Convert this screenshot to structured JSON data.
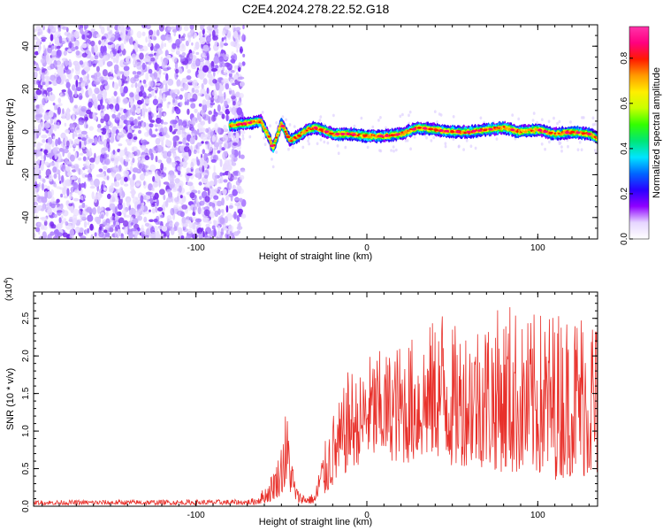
{
  "title": "C2E4.2024.278.22.52.G18",
  "colors": {
    "snr_line": "#e8302a",
    "scatter": "#8a2be2",
    "frame": "#000000"
  },
  "chart_data": [
    {
      "type": "heatmap",
      "xlabel": "Height of straight line (km)",
      "ylabel": "Frequency (Hz)",
      "xlim": [
        -195,
        135
      ],
      "ylim": [
        -50,
        50
      ],
      "x_ticks": [
        -100,
        0,
        100
      ],
      "x_tick_labels": [
        "-100",
        "0",
        "100"
      ],
      "y_ticks": [
        -40,
        -20,
        0,
        20,
        40
      ],
      "y_tick_labels": [
        "-40",
        "-20",
        "0",
        "20",
        "40"
      ],
      "noise_region_x": [
        -195,
        -80
      ],
      "ridge": {
        "x": [
          -80,
          -70,
          -62,
          -57,
          -55,
          -50,
          -45,
          -40,
          -35,
          -30,
          -20,
          -10,
          0,
          10,
          20,
          30,
          40,
          50,
          60,
          70,
          80,
          90,
          100,
          110,
          120,
          130,
          135
        ],
        "frequency": [
          3,
          4,
          5,
          -3,
          -8,
          4,
          -4,
          -2,
          1,
          2,
          -1,
          -1,
          -2,
          -2,
          -1,
          2,
          1,
          0,
          0,
          1,
          2,
          0,
          1,
          -1,
          0,
          -1,
          -3
        ]
      },
      "colorbar": {
        "label": "Normalized spectral amplitude",
        "range": [
          0,
          0.94
        ],
        "ticks": [
          0.0,
          0.2,
          0.4,
          0.6,
          0.8
        ],
        "tick_labels": [
          "0.0",
          "0.2",
          "0.4",
          "0.6",
          "0.8"
        ],
        "colors": [
          "#ffffff",
          "#e6d6ff",
          "#8f00ff",
          "#2a00ff",
          "#0066ff",
          "#00e5ff",
          "#00e676",
          "#33ff00",
          "#c8ff00",
          "#ffee00",
          "#ff9a00",
          "#ff1a00",
          "#ff007f",
          "#ff33aa"
        ]
      }
    },
    {
      "type": "line",
      "xlabel": "Height of straight line (km)",
      "ylabel": "SNR (10 * v/v)",
      "y_multiplier_label": "(x10",
      "y_multiplier_exp": "4",
      "xlim": [
        -195,
        135
      ],
      "ylim": [
        0,
        28500
      ],
      "x_ticks": [
        -100,
        0,
        100
      ],
      "x_tick_labels": [
        "-100",
        "0",
        "100"
      ],
      "y_ticks": [
        0,
        5000,
        10000,
        15000,
        20000,
        25000
      ],
      "y_tick_labels": [
        "0.0",
        "0.5",
        "1.0",
        "1.5",
        "2.0",
        "2.5"
      ],
      "envelope": {
        "x": [
          -195,
          -70,
          -65,
          -60,
          -57,
          -55,
          -52,
          -50,
          -48,
          -46,
          -44,
          -42,
          -40,
          -35,
          -30,
          -28,
          -25,
          -22,
          -20,
          -15,
          -10,
          -5,
          0,
          5,
          10,
          20,
          30,
          40,
          45,
          50,
          60,
          70,
          80,
          85,
          90,
          100,
          110,
          120,
          125,
          130,
          135
        ],
        "max": [
          800,
          900,
          1200,
          2500,
          3500,
          5000,
          6500,
          9000,
          13000,
          12000,
          7000,
          3500,
          2000,
          1500,
          1800,
          6000,
          8000,
          11000,
          12500,
          14500,
          19000,
          17000,
          20000,
          21000,
          20500,
          22000,
          23000,
          25000,
          28000,
          24000,
          25000,
          26000,
          26500,
          28000,
          24500,
          26000,
          26500,
          26000,
          27000,
          28000,
          25000
        ],
        "min": [
          200,
          200,
          200,
          400,
          500,
          800,
          1200,
          1500,
          2000,
          1800,
          1500,
          700,
          400,
          300,
          300,
          600,
          1200,
          2000,
          2500,
          3500,
          5000,
          5500,
          6500,
          6000,
          6500,
          5500,
          6000,
          6500,
          6000,
          5000,
          5500,
          5000,
          4500,
          4000,
          4500,
          4000,
          3500,
          4000,
          4000,
          3500,
          3500
        ]
      }
    }
  ]
}
